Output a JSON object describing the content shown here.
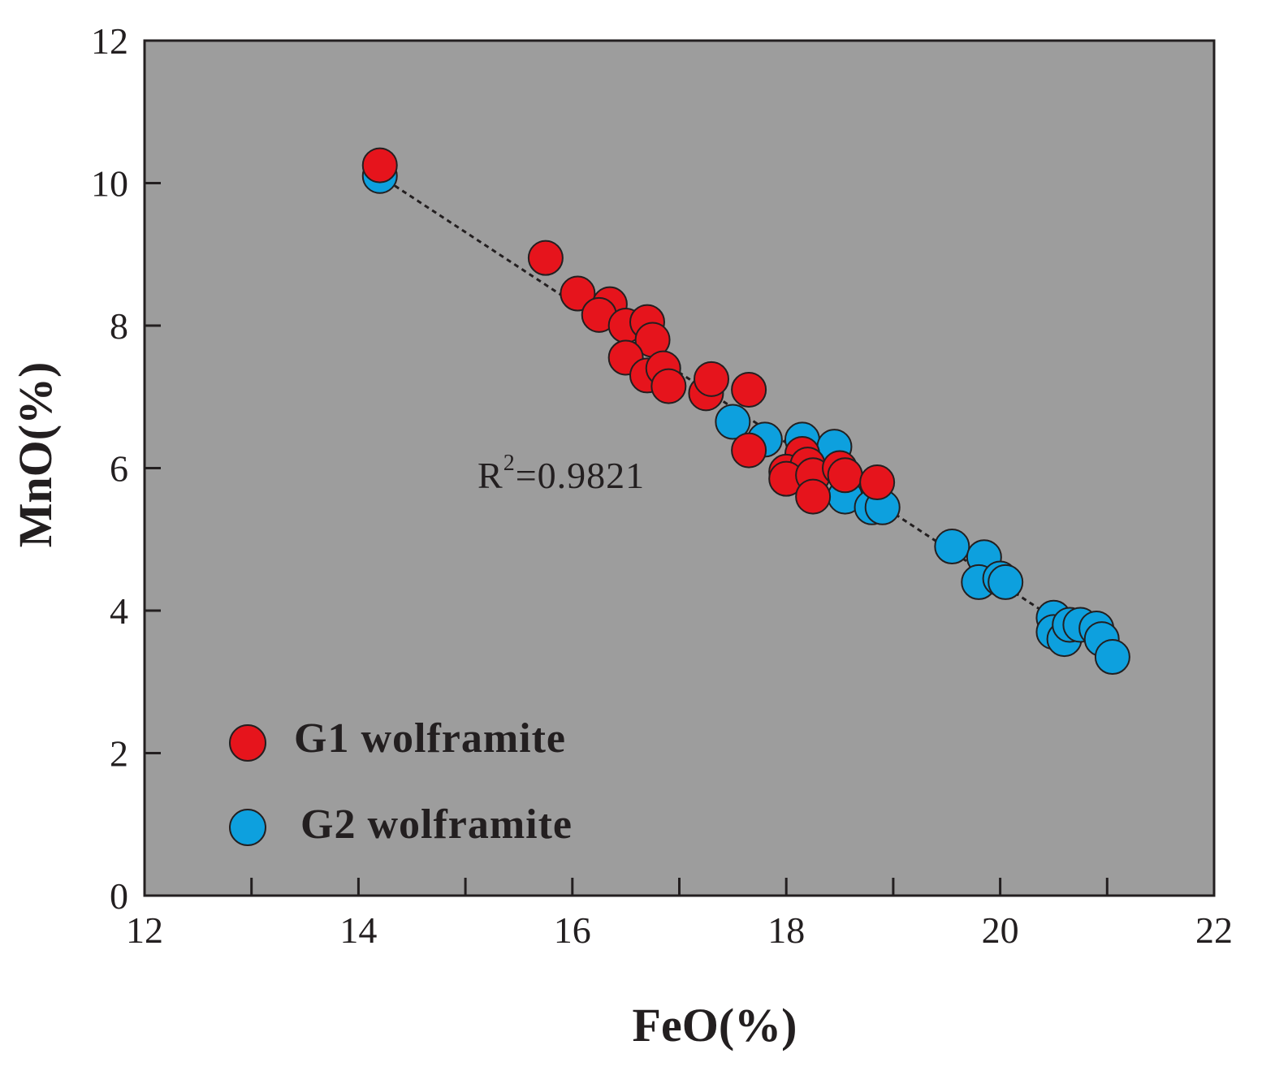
{
  "chart_data": {
    "type": "scatter",
    "title": "",
    "xlabel": "FeO(%)",
    "ylabel": "MnO(%)",
    "xlim": [
      12,
      22
    ],
    "ylim": [
      0,
      12
    ],
    "x_ticks": [
      12,
      14,
      16,
      18,
      20,
      22
    ],
    "y_ticks": [
      0,
      2,
      4,
      6,
      8,
      10,
      12
    ],
    "x_minor_ticks": [
      13,
      15,
      17,
      19,
      21
    ],
    "grid": false,
    "background": "#9d9d9d",
    "legend_position": "bottom-left",
    "trendline": {
      "x": [
        14.2,
        21.05
      ],
      "y": [
        10.1,
        3.35
      ],
      "style": "dashed"
    },
    "annotation": {
      "base": "R",
      "sup": "2",
      "rest": "=0.9821"
    },
    "series": [
      {
        "name": "G2 wolframite",
        "color": "#0da0de",
        "points": [
          [
            14.2,
            10.1
          ],
          [
            17.5,
            6.65
          ],
          [
            17.8,
            6.4
          ],
          [
            18.15,
            6.4
          ],
          [
            18.45,
            6.3
          ],
          [
            18.55,
            5.6
          ],
          [
            18.8,
            5.45
          ],
          [
            18.9,
            5.45
          ],
          [
            19.55,
            4.9
          ],
          [
            19.85,
            4.75
          ],
          [
            19.8,
            4.4
          ],
          [
            20.0,
            4.45
          ],
          [
            20.05,
            4.4
          ],
          [
            20.5,
            3.9
          ],
          [
            20.5,
            3.7
          ],
          [
            20.6,
            3.6
          ],
          [
            20.65,
            3.8
          ],
          [
            20.75,
            3.8
          ],
          [
            20.9,
            3.75
          ],
          [
            20.95,
            3.6
          ],
          [
            21.05,
            3.35
          ]
        ]
      },
      {
        "name": "G1 wolframite",
        "color": "#e6141c",
        "points": [
          [
            14.2,
            10.25
          ],
          [
            15.75,
            8.95
          ],
          [
            16.05,
            8.45
          ],
          [
            16.35,
            8.3
          ],
          [
            16.25,
            8.15
          ],
          [
            16.5,
            8.0
          ],
          [
            16.7,
            8.05
          ],
          [
            16.75,
            7.8
          ],
          [
            16.5,
            7.55
          ],
          [
            16.7,
            7.3
          ],
          [
            16.85,
            7.4
          ],
          [
            16.9,
            7.15
          ],
          [
            17.25,
            7.05
          ],
          [
            17.3,
            7.25
          ],
          [
            17.65,
            7.1
          ],
          [
            17.65,
            6.25
          ],
          [
            18.15,
            6.2
          ],
          [
            18.0,
            5.95
          ],
          [
            18.2,
            6.05
          ],
          [
            18.0,
            5.85
          ],
          [
            18.25,
            5.9
          ],
          [
            18.25,
            5.6
          ],
          [
            18.5,
            6.0
          ],
          [
            18.55,
            5.9
          ],
          [
            18.85,
            5.8
          ]
        ]
      }
    ]
  }
}
